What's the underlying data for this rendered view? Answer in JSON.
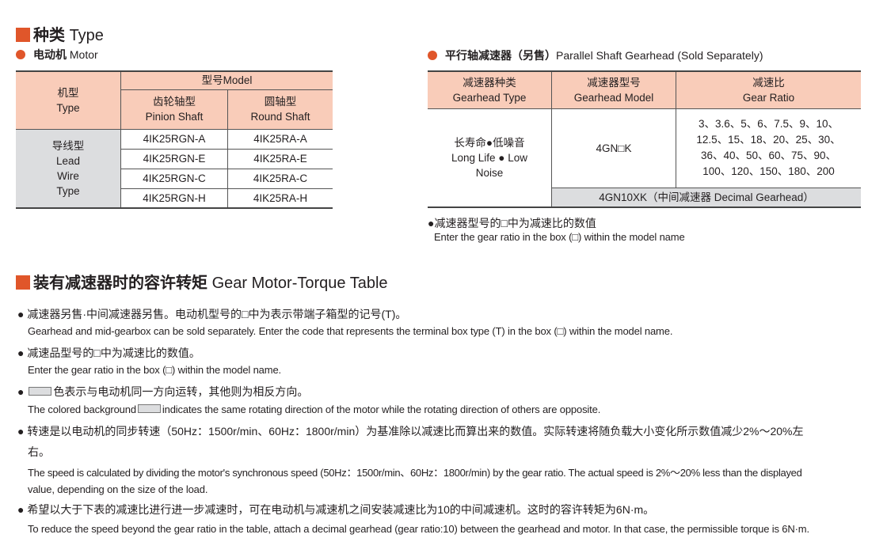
{
  "type_section": {
    "title_cn": "种类",
    "title_en": "Type"
  },
  "motor": {
    "title_cn": "电动机",
    "title_en": "Motor",
    "header": {
      "type_cn": "机型",
      "type_en": "Type",
      "model": "型号Model",
      "pinion_cn": "齿轮轴型",
      "pinion_en": "Pinion Shaft",
      "round_cn": "圆轴型",
      "round_en": "Round Shaft"
    },
    "row_type": {
      "cn": "导线型",
      "en1": "Lead",
      "en2": "Wire",
      "en3": "Type"
    },
    "rows": [
      {
        "pinion": "4IK25RGN-A",
        "round": "4IK25RA-A"
      },
      {
        "pinion": "4IK25RGN-E",
        "round": "4IK25RA-E"
      },
      {
        "pinion": "4IK25RGN-C",
        "round": "4IK25RA-C"
      },
      {
        "pinion": "4IK25RGN-H",
        "round": "4IK25RA-H"
      }
    ]
  },
  "gearhead": {
    "title_cn": "平行轴减速器（另售）",
    "title_en": "Parallel Shaft Gearhead (Sold Separately)",
    "header": {
      "type_cn": "减速器种类",
      "type_en": "Gearhead Type",
      "model_cn": "减速器型号",
      "model_en": "Gearhead Model",
      "ratio_cn": "减速比",
      "ratio_en": "Gear Ratio"
    },
    "type_cn": "长寿命●低噪音",
    "type_en1": "Long Life ● Low",
    "type_en2": "Noise",
    "model": "4GN□K",
    "ratios": [
      "3、3.6、5、6、7.5、9、10、",
      "12.5、15、18、20、25、30、",
      "36、40、50、60、75、90、",
      "100、120、150、180、200"
    ],
    "decimal": "4GN10XK（中间减速器 Decimal Gearhead）",
    "note_cn": "●减速器型号的□中为减速比的数值",
    "note_en": "Enter the gear ratio in the box (□) within the model name"
  },
  "torque_section": {
    "title_cn": "装有减速器时的容许转矩",
    "title_en": "Gear Motor-Torque Table"
  },
  "notes": {
    "n1_cn": "减速器另售·中间减速器另售。电动机型号的□中为表示带端子箱型的记号(T)。",
    "n1_en": "Gearhead and mid-gearbox can be sold separately. Enter the code that represents the terminal box type (T) in the box (□) within the model name.",
    "n2_cn": "减速品型号的□中为减速比的数值。",
    "n2_en": "Enter the gear ratio in the box (□) within the model name.",
    "n3_cn": "色表示与电动机同一方向运转，其他则为相反方向。",
    "n3_en_a": "The colored background",
    "n3_en_b": "indicates the same rotating direction of the motor while the rotating direction of others are opposite.",
    "n4_cn1": "转速是以电动机的同步转速（50Hz：1500r/min、60Hz：1800r/min）为基准除以减速比而算出来的数值。实际转速将随负载大小变化所示数值减少2%～20%左",
    "n4_cn2": "右。",
    "n4_en1": "The speed is calculated by dividing the motor's synchronous speed (50Hz：1500r/min、60Hz：1800r/min) by the gear ratio. The actual speed is 2%～20% less than the displayed",
    "n4_en2": "value, depending on the size of the load.",
    "n5_cn": "希望以大于下表的减速比进行进一步减速时，可在电动机与减速机之间安装减速比为10的中间减速机。这时的容许转矩为6N·m。",
    "n5_en": "To reduce the speed beyond the gear ratio in the table, attach a decimal gearhead (gear ratio:10) between the gearhead and motor. In that case, the permissible torque is 6N·m."
  },
  "colors": {
    "accent": "#e0562a",
    "header_bg": "#f9ccb9",
    "gray_bg": "#dcdddf"
  }
}
